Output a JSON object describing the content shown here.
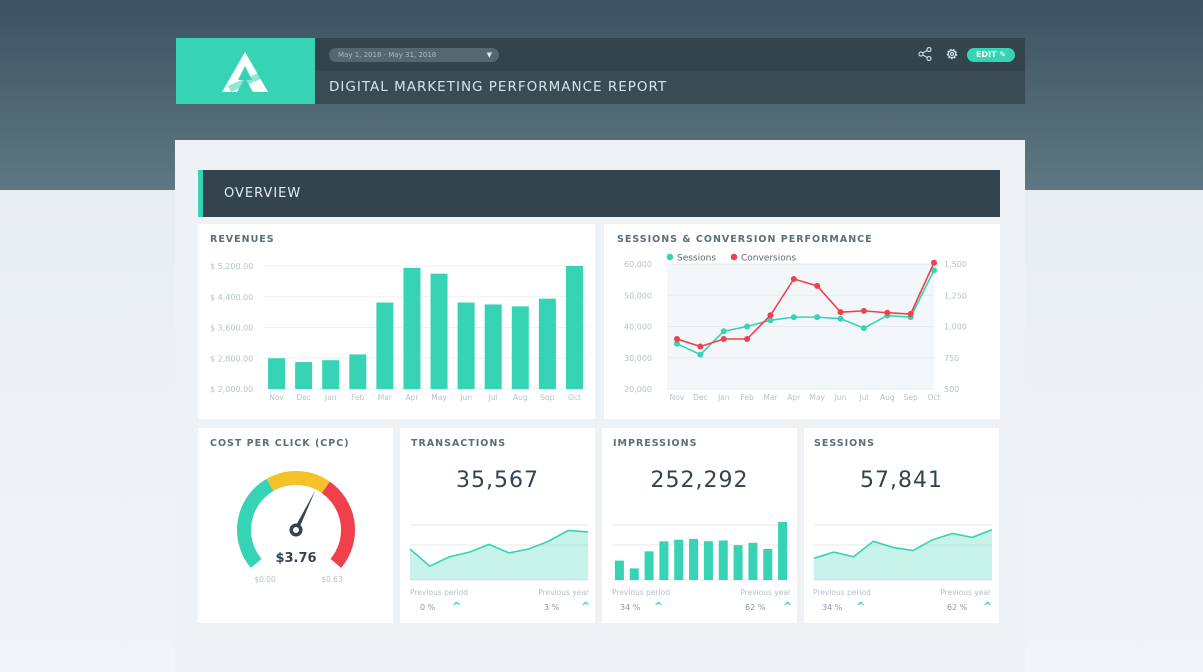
{
  "header": {
    "date_range": "May 1, 2018 - May 31, 2018",
    "title": "DIGITAL MARKETING PERFORMANCE REPORT",
    "edit_label": "EDIT"
  },
  "section": {
    "title": "OVERVIEW"
  },
  "colors": {
    "accent": "#37d3b5",
    "conversions": "#f0404b",
    "gauge_yellow": "#f5c22a",
    "dark": "#33444f"
  },
  "revenues": {
    "title": "REVENUES",
    "chart_data": {
      "type": "bar",
      "categories": [
        "Nov",
        "Dec",
        "Jan",
        "Feb",
        "Mar",
        "Apr",
        "May",
        "Jun",
        "Jul",
        "Aug",
        "Sep",
        "Oct"
      ],
      "values": [
        2800,
        2700,
        2750,
        2900,
        4250,
        5150,
        5000,
        4250,
        4200,
        4150,
        4350,
        5200
      ],
      "ylim": [
        2000,
        5200
      ],
      "ytick_labels": [
        "$ 5,200.00",
        "$ 4,400.00",
        "$ 3,600.00",
        "$ 2,800.00",
        "$ 2,000.00"
      ],
      "ytick_values": [
        5200,
        4400,
        3600,
        2800,
        2000
      ],
      "grid": true
    }
  },
  "sessions_perf": {
    "title": "SESSIONS & CONVERSION PERFORMANCE",
    "chart_data": {
      "type": "line",
      "categories": [
        "Nov",
        "Dec",
        "Jan",
        "Feb",
        "Mar",
        "Apr",
        "May",
        "Jun",
        "Jul",
        "Aug",
        "Sep",
        "Oct"
      ],
      "series": [
        {
          "name": "Sessions",
          "values": [
            34500,
            31000,
            38500,
            40000,
            42000,
            43000,
            43000,
            42500,
            39500,
            43500,
            43000,
            58000
          ],
          "axis": "left"
        },
        {
          "name": "Conversions",
          "values": [
            900,
            840,
            900,
            900,
            1090,
            1380,
            1325,
            1115,
            1125,
            1110,
            1100,
            1510
          ],
          "axis": "right"
        }
      ],
      "ylim_left": [
        20000,
        60000
      ],
      "ylim_right": [
        500,
        1500
      ],
      "yticks_left": [
        "60,000",
        "50,000",
        "40,000",
        "30,000",
        "20,000"
      ],
      "yticks_right": [
        "1,500",
        "1,250",
        "1,000",
        "750",
        "500"
      ],
      "legend": "top-left"
    }
  },
  "cpc": {
    "title": "COST PER CLICK (CPC)",
    "value": "$3.76",
    "min_label": "$0.00",
    "max_label": "$0.63",
    "chart_data": {
      "type": "gauge",
      "min": 0,
      "max": 1,
      "value_fraction": 0.6
    }
  },
  "transactions": {
    "title": "TRANSACTIONS",
    "value": "35,567",
    "prev_period_label": "Previous period",
    "prev_period_value": "0 %",
    "prev_year_label": "Previous year",
    "prev_year_value": "3 %",
    "chart_data": {
      "type": "area",
      "values": [
        40,
        18,
        30,
        36,
        46,
        35,
        40,
        50,
        64,
        62
      ]
    }
  },
  "impressions": {
    "title": "IMPRESSIONS",
    "value": "252,292",
    "prev_period_label": "Previous period",
    "prev_period_value": "34 %",
    "prev_year_label": "Previous year",
    "prev_year_value": "62 %",
    "chart_data": {
      "type": "bar",
      "values": [
        25,
        15,
        37,
        50,
        52,
        53,
        50,
        51,
        45,
        48,
        40,
        75
      ]
    }
  },
  "sessions": {
    "title": "SESSIONS",
    "value": "57,841",
    "prev_period_label": "Previous period",
    "prev_period_value": "34 %",
    "prev_year_label": "Previous year",
    "prev_year_value": "62 %",
    "chart_data": {
      "type": "area",
      "values": [
        28,
        36,
        30,
        50,
        42,
        38,
        52,
        60,
        55,
        65
      ]
    }
  }
}
